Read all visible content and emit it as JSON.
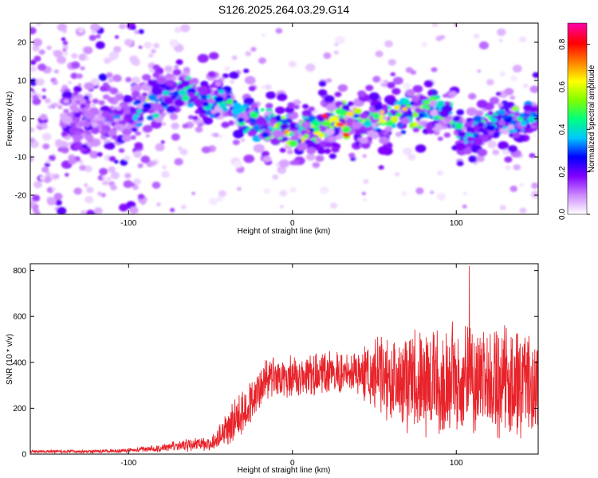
{
  "title": "S126.2025.264.03.29.G14",
  "chart_data": [
    {
      "type": "heatmap",
      "name": "spectrogram",
      "xlabel": "Height of straight line (km)",
      "ylabel": "Frequency (Hz)",
      "xlim": [
        -160,
        150
      ],
      "ylim": [
        -25,
        25
      ],
      "xticks": [
        -100,
        0,
        100
      ],
      "xtick_labels": [
        "-100",
        "0",
        "100"
      ],
      "yticks": [
        -20,
        -10,
        0,
        10,
        20
      ],
      "ytick_labels": [
        "-20",
        "-10",
        "0",
        "10",
        "20"
      ],
      "ridge": {
        "x": [
          -150,
          -130,
          -110,
          -100,
          -90,
          -80,
          -70,
          -60,
          -50,
          -40,
          -30,
          -20,
          -10,
          0,
          10,
          20,
          30,
          40,
          50,
          60,
          70,
          80,
          90,
          100,
          105,
          110,
          120,
          130,
          140,
          150
        ],
        "y": [
          -1,
          0,
          0,
          0,
          3,
          5,
          8,
          7,
          4,
          5,
          0,
          -1,
          -2,
          -3,
          -3,
          -2,
          -1,
          -1,
          0,
          1,
          2,
          3,
          2,
          -1,
          -7,
          -4,
          -1,
          0,
          -1,
          1
        ]
      },
      "peak": {
        "x": 28,
        "y": -1.5
      },
      "colorbar": {
        "label": "Normalized spectral amplitude",
        "range": [
          0.0,
          0.9
        ],
        "ticks": [
          0.0,
          0.2,
          0.4,
          0.6,
          0.8
        ],
        "tick_labels": [
          "0.0",
          "0.2",
          "0.4",
          "0.6",
          "0.8"
        ],
        "colors": [
          "#ffffff",
          "#cc88ff",
          "#8000ff",
          "#0000ff",
          "#00c8ff",
          "#00ff80",
          "#80ff00",
          "#ffff00",
          "#ff8000",
          "#ff0000",
          "#ff00a0"
        ]
      }
    },
    {
      "type": "line",
      "name": "snr",
      "xlabel": "Height of straight line (km)",
      "ylabel": "SNR (10 * v/v)",
      "xlim": [
        -160,
        150
      ],
      "ylim": [
        0,
        830
      ],
      "xticks": [
        -100,
        0,
        100
      ],
      "xtick_labels": [
        "-100",
        "0",
        "100"
      ],
      "yticks": [
        0,
        200,
        400,
        600,
        800
      ],
      "ytick_labels": [
        "0",
        "200",
        "400",
        "600",
        "800"
      ],
      "color": "#e8232a",
      "envelope": {
        "x": [
          -160,
          -120,
          -100,
          -80,
          -60,
          -50,
          -40,
          -30,
          -20,
          -10,
          0,
          20,
          40,
          60,
          80,
          100,
          120,
          140,
          150
        ],
        "median": [
          12,
          12,
          16,
          26,
          45,
          40,
          110,
          180,
          300,
          330,
          340,
          350,
          360,
          340,
          320,
          330,
          320,
          300,
          320
        ],
        "spread": [
          8,
          8,
          10,
          18,
          35,
          30,
          90,
          120,
          120,
          110,
          100,
          100,
          110,
          230,
          260,
          270,
          270,
          270,
          250
        ]
      },
      "max_point": {
        "x": 108,
        "y": 820
      }
    }
  ]
}
